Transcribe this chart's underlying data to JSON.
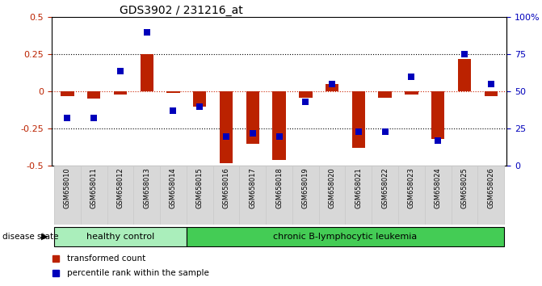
{
  "title": "GDS3902 / 231216_at",
  "samples": [
    "GSM658010",
    "GSM658011",
    "GSM658012",
    "GSM658013",
    "GSM658014",
    "GSM658015",
    "GSM658016",
    "GSM658017",
    "GSM658018",
    "GSM658019",
    "GSM658020",
    "GSM658021",
    "GSM658022",
    "GSM658023",
    "GSM658024",
    "GSM658025",
    "GSM658026"
  ],
  "red_values": [
    -0.03,
    -0.05,
    -0.02,
    0.25,
    -0.01,
    -0.1,
    -0.48,
    -0.35,
    -0.46,
    -0.04,
    0.05,
    -0.38,
    -0.04,
    -0.02,
    -0.32,
    0.22,
    -0.03
  ],
  "blue_pct": [
    32,
    32,
    64,
    90,
    37,
    40,
    20,
    22,
    20,
    43,
    55,
    23,
    23,
    60,
    17,
    75,
    55
  ],
  "ylim": [
    -0.5,
    0.5
  ],
  "yticks_left": [
    -0.5,
    -0.25,
    0.0,
    0.25,
    0.5
  ],
  "ytick_labels_left": [
    "-0.5",
    "-0.25",
    "0",
    "0.25",
    "0.5"
  ],
  "right_yticks_pct": [
    0,
    25,
    50,
    75,
    100
  ],
  "right_ylabels": [
    "0",
    "25",
    "50",
    "75",
    "100%"
  ],
  "group1_count": 5,
  "group1_label": "healthy control",
  "group2_label": "chronic B-lymphocytic leukemia",
  "disease_state_label": "disease state",
  "legend1": "transformed count",
  "legend2": "percentile rank within the sample",
  "red_color": "#bb2200",
  "blue_color": "#0000bb",
  "group1_bg": "#aaeebb",
  "group2_bg": "#44cc55",
  "sample_box_bg": "#d8d8d8",
  "sample_box_edge": "#cccccc",
  "bg_color": "#ffffff",
  "bar_width": 0.5,
  "marker_size": 6,
  "dotted_line_color": "#555555",
  "red_zero_line_color": "#cc2200"
}
